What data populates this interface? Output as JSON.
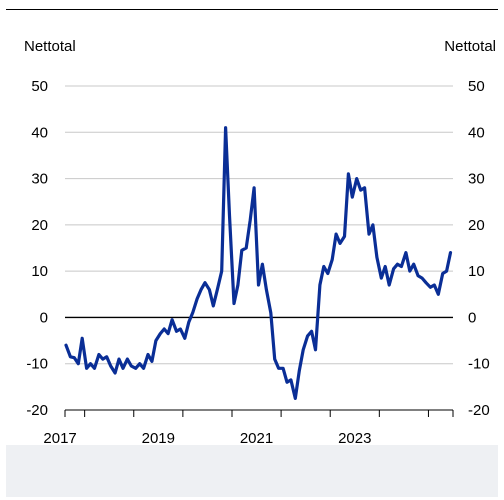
{
  "y_unit_left": "Nettotal",
  "y_unit_right": "Nettotal",
  "colors": {
    "line": "#0a2e96",
    "grid": "#c8c8c8",
    "zero": "#000000"
  },
  "chart_data": {
    "type": "line",
    "title": "",
    "xlabel": "",
    "ylabel": "Nettotal",
    "ylim": [
      -20,
      50
    ],
    "yticks": [
      -20,
      -10,
      0,
      10,
      20,
      30,
      40,
      50
    ],
    "xticks": [
      2017,
      2019,
      2021,
      2023
    ],
    "grid": true,
    "series": [
      {
        "values": [
          [
            2016.62,
            -6
          ],
          [
            2016.71,
            -8.5
          ],
          [
            2016.79,
            -8.7
          ],
          [
            2016.87,
            -10
          ],
          [
            2016.95,
            -4.5
          ],
          [
            2017.04,
            -11
          ],
          [
            2017.12,
            -10
          ],
          [
            2017.2,
            -11
          ],
          [
            2017.29,
            -8
          ],
          [
            2017.37,
            -9
          ],
          [
            2017.45,
            -8.5
          ],
          [
            2017.53,
            -10.5
          ],
          [
            2017.62,
            -12
          ],
          [
            2017.7,
            -9
          ],
          [
            2017.78,
            -11
          ],
          [
            2017.87,
            -9
          ],
          [
            2017.95,
            -10.5
          ],
          [
            2018.04,
            -11
          ],
          [
            2018.12,
            -10
          ],
          [
            2018.2,
            -11
          ],
          [
            2018.29,
            -8
          ],
          [
            2018.37,
            -9.5
          ],
          [
            2018.45,
            -5
          ],
          [
            2018.54,
            -3.5
          ],
          [
            2018.62,
            -2.5
          ],
          [
            2018.7,
            -3.5
          ],
          [
            2018.78,
            -0.5
          ],
          [
            2018.87,
            -3
          ],
          [
            2018.95,
            -2.5
          ],
          [
            2019.04,
            -4.5
          ],
          [
            2019.12,
            -1
          ],
          [
            2019.2,
            1
          ],
          [
            2019.29,
            4
          ],
          [
            2019.37,
            6
          ],
          [
            2019.45,
            7.5
          ],
          [
            2019.54,
            6
          ],
          [
            2019.62,
            2.5
          ],
          [
            2019.7,
            6
          ],
          [
            2019.79,
            10
          ],
          [
            2019.87,
            41
          ],
          [
            2019.95,
            22
          ],
          [
            2020.04,
            3
          ],
          [
            2020.12,
            7
          ],
          [
            2020.2,
            14.5
          ],
          [
            2020.29,
            15
          ],
          [
            2020.37,
            21
          ],
          [
            2020.45,
            28
          ],
          [
            2020.54,
            7
          ],
          [
            2020.62,
            11.5
          ],
          [
            2020.7,
            6
          ],
          [
            2020.79,
            1
          ],
          [
            2020.87,
            -9
          ],
          [
            2020.95,
            -11
          ],
          [
            2021.04,
            -11
          ],
          [
            2021.12,
            -14
          ],
          [
            2021.2,
            -13.5
          ],
          [
            2021.29,
            -17.5
          ],
          [
            2021.37,
            -11.5
          ],
          [
            2021.45,
            -7
          ],
          [
            2021.54,
            -4
          ],
          [
            2021.62,
            -3
          ],
          [
            2021.7,
            -7
          ],
          [
            2021.79,
            7
          ],
          [
            2021.87,
            11
          ],
          [
            2021.95,
            9.5
          ],
          [
            2022.04,
            12.5
          ],
          [
            2022.12,
            18
          ],
          [
            2022.2,
            16
          ],
          [
            2022.29,
            17.5
          ],
          [
            2022.37,
            31
          ],
          [
            2022.45,
            26
          ],
          [
            2022.54,
            30
          ],
          [
            2022.62,
            27.5
          ],
          [
            2022.7,
            28
          ],
          [
            2022.79,
            18
          ],
          [
            2022.87,
            20
          ],
          [
            2022.95,
            13
          ],
          [
            2023.04,
            8.5
          ],
          [
            2023.12,
            11
          ],
          [
            2023.2,
            7
          ],
          [
            2023.29,
            10.5
          ],
          [
            2023.37,
            11.5
          ],
          [
            2023.45,
            11
          ],
          [
            2023.54,
            14
          ],
          [
            2023.62,
            10
          ],
          [
            2023.7,
            11.5
          ],
          [
            2023.79,
            9
          ],
          [
            2023.87,
            8.5
          ],
          [
            2023.95,
            7.5
          ],
          [
            2024.04,
            6.5
          ],
          [
            2024.12,
            7
          ],
          [
            2024.2,
            5
          ],
          [
            2024.29,
            9.5
          ],
          [
            2024.37,
            10
          ],
          [
            2024.45,
            14
          ]
        ]
      }
    ]
  }
}
